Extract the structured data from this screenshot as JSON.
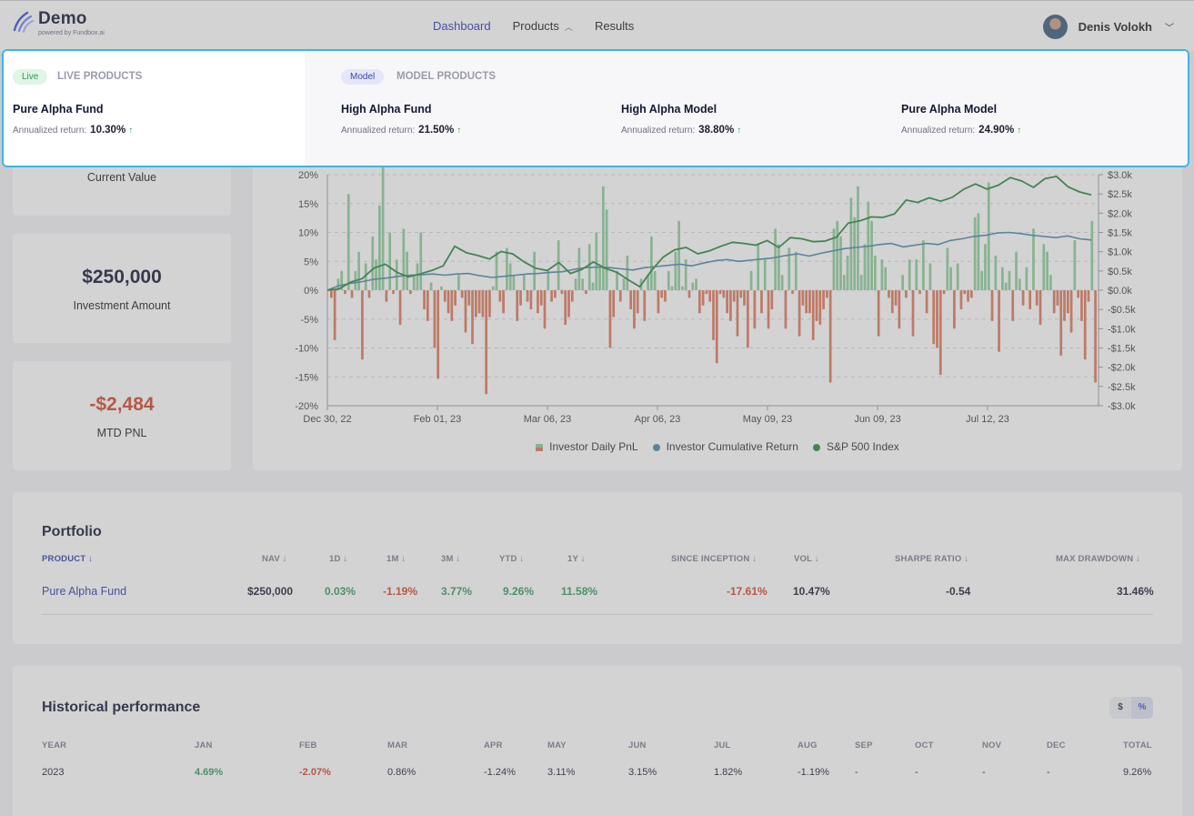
{
  "header": {
    "logo_title": "Demo",
    "logo_sub": "powered by Fundbox.ai",
    "nav": [
      {
        "label": "Dashboard",
        "active": true
      },
      {
        "label": "Products",
        "active": false
      },
      {
        "label": "Results",
        "active": false
      }
    ],
    "user_name": "Denis Volokh"
  },
  "stats": {
    "current_value_label": "Current Value",
    "investment_amount_value": "$250,000",
    "investment_amount_label": "Investment Amount",
    "mtd_pnl_value": "-$2,484",
    "mtd_pnl_label": "MTD PNL"
  },
  "chart_data": {
    "type": "bar",
    "x_ticks": [
      "Dec 30, 22",
      "Feb 01, 23",
      "Mar 06, 23",
      "Apr 06, 23",
      "May 09, 23",
      "Jun 09, 23",
      "Jul 12, 23"
    ],
    "y_left_ticks": [
      "20%",
      "15%",
      "10%",
      "5%",
      "0%",
      "-5%",
      "-10%",
      "-15%",
      "-20%"
    ],
    "y_right_ticks": [
      "$3.0k",
      "$2.5k",
      "$2.0k",
      "$1.5k",
      "$1.0k",
      "$0.5k",
      "$0.0k",
      "-$0.5k",
      "-$1.0k",
      "-$1.5k",
      "-$2.0k",
      "-$2.5k",
      "-$3.0k"
    ],
    "ylim_left": [
      -20,
      20
    ],
    "ylim_right": [
      -3000,
      3000
    ],
    "grid": true,
    "legend_position": "bottom",
    "series": [
      {
        "name": "Investor Daily PnL",
        "type": "bar",
        "values": [
          -200,
          -1300,
          300,
          500,
          -100,
          2500,
          -200,
          500,
          1000,
          -1800,
          700,
          -200,
          1400,
          800,
          2200,
          3300,
          -300,
          1500,
          -100,
          800,
          -900,
          1600,
          1000,
          -100,
          400,
          700,
          1500,
          -500,
          -800,
          200,
          -1500,
          -2300,
          100,
          -300,
          -600,
          -800,
          -400,
          400,
          -200,
          -1100,
          -400,
          -1400,
          -700,
          -600,
          -700,
          -2700,
          -700,
          100,
          1000,
          -300,
          -600,
          1100,
          700,
          400,
          -800,
          -400,
          400,
          -300,
          -500,
          1000,
          -600,
          -400,
          -1000,
          500,
          -300,
          -200,
          1300,
          -100,
          -900,
          -700,
          -300,
          300,
          1100,
          300,
          -100,
          1200,
          200,
          1500,
          600,
          2700,
          2100,
          -1500,
          -700,
          500,
          -300,
          300,
          900,
          -500,
          -1000,
          -600,
          300,
          -800,
          400,
          1400,
          500,
          -600,
          -200,
          -300,
          500,
          100,
          1000,
          1800,
          100,
          800,
          -200,
          200,
          300,
          -600,
          -400,
          -100,
          -300,
          -1300,
          -1900,
          -100,
          -200,
          -600,
          -800,
          -300,
          -1200,
          -200,
          -400,
          -1500,
          500,
          -1000,
          1200,
          -600,
          800,
          -1000,
          -500,
          1600,
          1200,
          400,
          -1000,
          1100,
          -100,
          1000,
          -1200,
          -400,
          -600,
          -600,
          -1300,
          -800,
          -900,
          -500,
          -200,
          -2400,
          1600,
          1800,
          1400,
          400,
          900,
          2400,
          1900,
          2700,
          400,
          1200,
          2300,
          1800,
          900,
          -1200,
          800,
          600,
          -200,
          -600,
          -400,
          -1000,
          400,
          -200,
          800,
          -1200,
          800,
          -100,
          1300,
          -600,
          700,
          -1400,
          -1500,
          -2200,
          -100,
          1100,
          600,
          -1000,
          700,
          -500,
          -100,
          -300,
          -200,
          1900,
          2000,
          500,
          1200,
          2800,
          -800,
          900,
          -1600,
          600,
          200,
          500,
          -800,
          1000,
          300,
          -400,
          600,
          -500,
          1600,
          -400,
          -900,
          1200,
          1000,
          400,
          -600,
          -400,
          -1700,
          -800,
          -600,
          -1100,
          1300,
          -200,
          -800,
          -1800,
          -300,
          1800,
          -2400
        ]
      },
      {
        "name": "Investor Cumulative Return",
        "type": "line",
        "values": [
          0.0,
          0.8,
          1.2,
          1.5,
          1.9,
          2.1,
          2.4,
          2.6,
          2.7,
          2.8,
          2.6,
          2.8,
          2.9,
          2.5,
          2.2,
          2.4,
          2.6,
          2.8,
          2.9,
          3.1,
          3.2,
          3.6,
          3.9,
          4.0,
          3.9,
          3.7,
          3.5,
          3.9,
          4.1,
          4.3,
          4.5,
          4.2,
          4.7,
          5.1,
          5.3,
          5.0,
          5.2,
          5.4,
          5.6,
          6.0,
          6.3,
          5.9,
          6.4,
          6.8,
          7.2,
          7.4,
          7.6,
          7.9,
          8.1,
          7.5,
          7.8,
          8.1,
          7.9,
          8.6,
          8.9,
          9.3,
          9.5,
          9.9,
          10.0,
          9.8,
          9.5,
          9.3,
          9.1,
          9.4,
          8.9,
          8.7
        ]
      },
      {
        "name": "S&P 500 Index",
        "type": "line",
        "values": [
          0.0,
          0.2,
          1.4,
          2.0,
          3.8,
          4.5,
          3.1,
          2.3,
          2.8,
          3.4,
          4.2,
          7.6,
          6.5,
          6.0,
          5.4,
          6.7,
          6.3,
          4.9,
          3.8,
          3.4,
          4.8,
          2.9,
          3.6,
          4.9,
          3.8,
          3.1,
          1.8,
          0.6,
          3.4,
          5.7,
          7.0,
          7.4,
          6.3,
          6.8,
          7.6,
          8.3,
          8.1,
          7.8,
          8.6,
          7.4,
          9.1,
          8.9,
          8.4,
          8.5,
          9.2,
          11.6,
          12.0,
          12.7,
          12.6,
          13.2,
          15.6,
          15.2,
          16.0,
          15.4,
          16.1,
          17.5,
          18.4,
          17.5,
          18.2,
          19.5,
          18.9,
          17.8,
          19.3,
          19.7,
          17.9,
          17.0,
          16.5
        ]
      }
    ]
  },
  "legend": [
    {
      "label": "Investor Daily PnL",
      "color": "#e07b5c"
    },
    {
      "label": "Investor Cumulative Return",
      "color": "#4c8aa9"
    },
    {
      "label": "S&P 500 Index",
      "color": "#2b8a3e"
    }
  ],
  "portfolio": {
    "title": "Portfolio",
    "headers": [
      "PRODUCT ↓",
      "NAV ↓",
      "1D ↓",
      "1M ↓",
      "3M ↓",
      "YTD ↓",
      "1Y ↓",
      "SINCE INCEPTION ↓",
      "VOL ↓",
      "SHARPE RATIO ↓",
      "MAX DRAWDOWN ↓"
    ],
    "row": [
      "Pure Alpha Fund",
      "$250,000",
      "0.03%",
      "-1.19%",
      "3.77%",
      "9.26%",
      "11.58%",
      "-17.61%",
      "10.47%",
      "-0.54",
      "31.46%"
    ]
  },
  "historical": {
    "title": "Historical performance",
    "toggle": [
      "$",
      "%"
    ],
    "headers": [
      "YEAR",
      "JAN",
      "FEB",
      "MAR",
      "APR",
      "MAY",
      "JUN",
      "JUL",
      "AUG",
      "SEP",
      "OCT",
      "NOV",
      "DEC",
      "TOTAL"
    ],
    "row": [
      "2023",
      "4.69%",
      "-2.07%",
      "0.86%",
      "-1.24%",
      "3.11%",
      "3.15%",
      "1.82%",
      "-1.19%",
      "-",
      "-",
      "-",
      "-",
      "9.26%"
    ]
  },
  "dropdown": {
    "live_pill": "Live",
    "live_title": "LIVE PRODUCTS",
    "model_pill": "Model",
    "model_title": "MODEL PRODUCTS",
    "return_label": "Annualized return:",
    "products": [
      {
        "name": "Pure Alpha Fund",
        "ret": "10.30%"
      },
      {
        "name": "High Alpha Fund",
        "ret": "21.50%"
      },
      {
        "name": "High Alpha Model",
        "ret": "38.80%"
      },
      {
        "name": "Pure Alpha Model",
        "ret": "24.90%"
      }
    ]
  }
}
